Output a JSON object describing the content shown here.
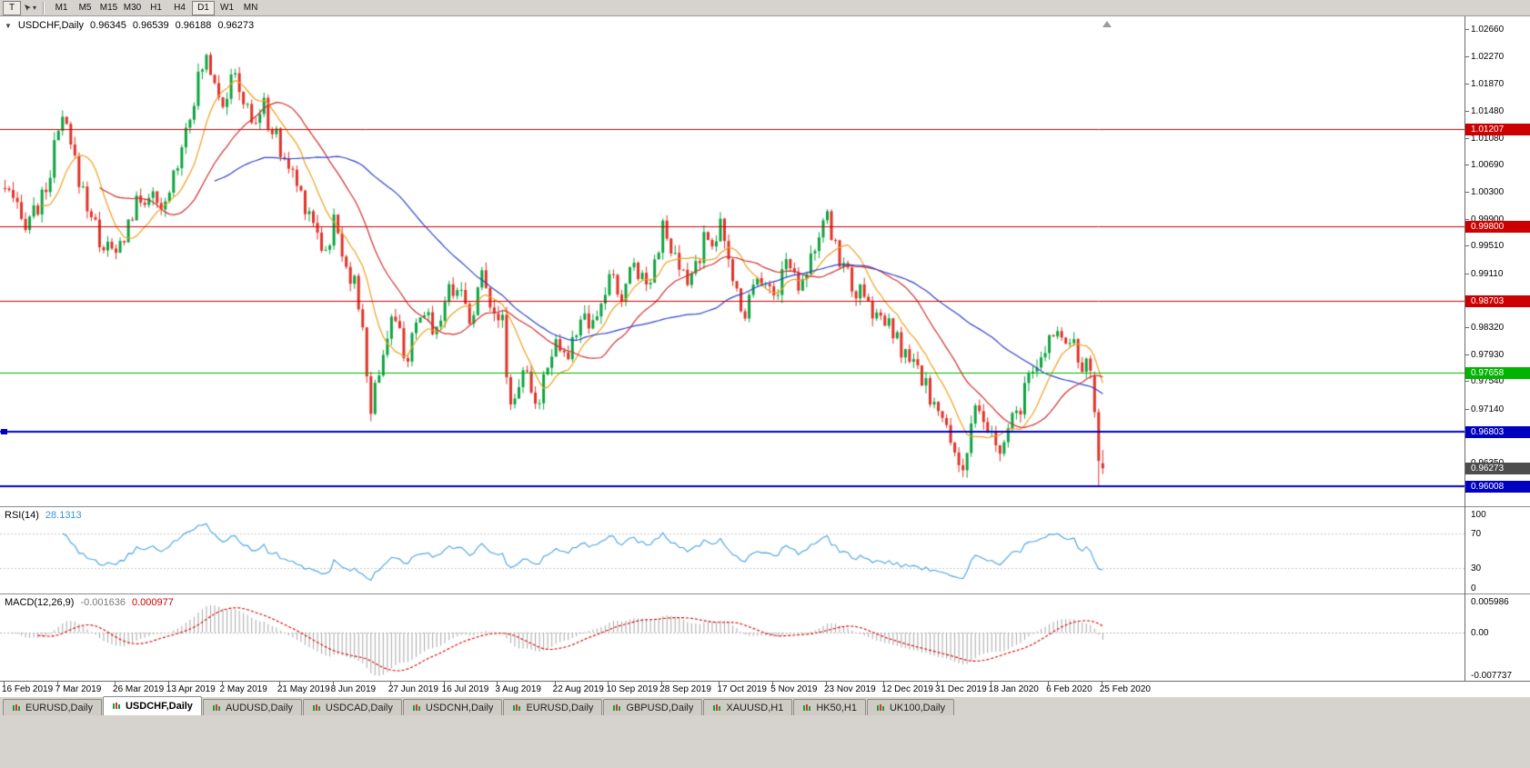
{
  "window": {
    "bg_color": "#d6d3ce"
  },
  "toolbar": {
    "text_tool_label": "T",
    "timeframes": [
      "M1",
      "M5",
      "M15",
      "M30",
      "H1",
      "H4",
      "D1",
      "W1",
      "MN"
    ],
    "active_timeframe": "D1"
  },
  "chart_header": {
    "collapse_icon": "▼",
    "symbol": "USDCHF,Daily",
    "open": "0.96345",
    "high": "0.96539",
    "low": "0.96188",
    "close": "0.96273"
  },
  "indicators": {
    "rsi": {
      "label": "RSI(14)",
      "value": "28.1313",
      "levels": [
        "100",
        "70",
        "30",
        "0"
      ],
      "line_color": "#4aa3e0"
    },
    "macd": {
      "label": "MACD(12,26,9)",
      "main_value": "-0.001636",
      "signal_value": "0.000977",
      "scale_max": "0.005986",
      "scale_zero": "0.00",
      "scale_min": "-0.007737",
      "histogram_color": "#a8a8a8",
      "signal_color": "#d40000"
    }
  },
  "chart_data": {
    "type": "candlestick",
    "symbol": "USDCHF",
    "timeframe": "Daily",
    "candle_count": 268,
    "up_color": "#0da440",
    "down_color": "#e03328",
    "price_path_anchors": [
      [
        0,
        1.0035
      ],
      [
        4,
        0.9985
      ],
      [
        9,
        1.0015
      ],
      [
        14,
        1.0135
      ],
      [
        18,
        1.005
      ],
      [
        23,
        0.996
      ],
      [
        27,
        0.9935
      ],
      [
        31,
        1.0
      ],
      [
        35,
        1.003
      ],
      [
        38,
        0.999
      ],
      [
        40,
        1.003
      ],
      [
        45,
        1.015
      ],
      [
        49,
        1.0228
      ],
      [
        53,
        1.0165
      ],
      [
        56,
        1.0195
      ],
      [
        60,
        1.013
      ],
      [
        63,
        1.015
      ],
      [
        67,
        1.009
      ],
      [
        71,
        1.004
      ],
      [
        75,
        0.999
      ],
      [
        78,
        0.994
      ],
      [
        80,
        0.9985
      ],
      [
        83,
        0.993
      ],
      [
        86,
        0.987
      ],
      [
        89,
        0.9715
      ],
      [
        92,
        0.98
      ],
      [
        94,
        0.9845
      ],
      [
        98,
        0.979
      ],
      [
        102,
        0.9855
      ],
      [
        105,
        0.983
      ],
      [
        107,
        0.9875
      ],
      [
        110,
        0.99
      ],
      [
        113,
        0.9845
      ],
      [
        116,
        0.9905
      ],
      [
        119,
        0.9865
      ],
      [
        121,
        0.9835
      ],
      [
        123,
        0.9718
      ],
      [
        126,
        0.9775
      ],
      [
        129,
        0.9708
      ],
      [
        132,
        0.979
      ],
      [
        134,
        0.9815
      ],
      [
        137,
        0.9785
      ],
      [
        140,
        0.985
      ],
      [
        143,
        0.9825
      ],
      [
        147,
        0.9905
      ],
      [
        150,
        0.9875
      ],
      [
        153,
        0.993
      ],
      [
        156,
        0.9895
      ],
      [
        160,
        0.9975
      ],
      [
        163,
        0.9925
      ],
      [
        166,
        0.9895
      ],
      [
        170,
        0.9955
      ],
      [
        174,
        0.9975
      ],
      [
        177,
        0.99
      ],
      [
        180,
        0.9855
      ],
      [
        183,
        0.992
      ],
      [
        187,
        0.9875
      ],
      [
        190,
        0.993
      ],
      [
        193,
        0.99
      ],
      [
        197,
        0.995
      ],
      [
        200,
        0.9985
      ],
      [
        203,
        0.9935
      ],
      [
        206,
        0.9895
      ],
      [
        210,
        0.986
      ],
      [
        214,
        0.984
      ],
      [
        218,
        0.98
      ],
      [
        222,
        0.9765
      ],
      [
        225,
        0.9735
      ],
      [
        227,
        0.9705
      ],
      [
        230,
        0.9668
      ],
      [
        233,
        0.9628
      ],
      [
        236,
        0.9705
      ],
      [
        239,
        0.9682
      ],
      [
        242,
        0.9648
      ],
      [
        245,
        0.9692
      ],
      [
        248,
        0.9738
      ],
      [
        252,
        0.9782
      ],
      [
        255,
        0.9832
      ],
      [
        258,
        0.9822
      ],
      [
        261,
        0.9785
      ],
      [
        263,
        0.9772
      ],
      [
        265,
        0.9756
      ],
      [
        266,
        0.9712
      ],
      [
        267,
        0.9627
      ]
    ],
    "forced_last_candles": {
      "265": [
        0.9762,
        0.9768,
        0.9701,
        0.9709
      ],
      "266": [
        0.9709,
        0.9714,
        0.9601,
        0.9638
      ],
      "267": [
        0.96345,
        0.96539,
        0.96188,
        0.96273
      ]
    },
    "moving_averages": [
      {
        "period": 10,
        "color": "#f0a020"
      },
      {
        "period": 24,
        "color": "#d03030"
      },
      {
        "period": 52,
        "color": "#3344cc"
      }
    ],
    "y_axis": {
      "top_price": 1.0285,
      "bottom_price": 0.9572,
      "ticks": [
        "1.02660",
        "1.02270",
        "1.01870",
        "1.01480",
        "1.01080",
        "1.00690",
        "1.00300",
        "0.99900",
        "0.99510",
        "0.99110",
        "0.98720",
        "0.98320",
        "0.97930",
        "0.97540",
        "0.97140",
        "0.96750",
        "0.96350",
        "0.95960"
      ]
    },
    "levels": [
      {
        "price": 1.01207,
        "label": "1.01207",
        "color": "#cc0000",
        "thickness": 1
      },
      {
        "price": 0.998,
        "label": "0.99800",
        "color": "#cc0000",
        "thickness": 1
      },
      {
        "price": 0.98703,
        "label": "0.98703",
        "color": "#cc0000",
        "thickness": 1
      },
      {
        "price": 0.97658,
        "label": "0.97658",
        "color": "#00b400",
        "thickness": 1
      },
      {
        "price": 0.96803,
        "label": "0.96803",
        "color": "#0000c0",
        "thickness": 2
      },
      {
        "price": 0.96008,
        "label": "0.96008",
        "color": "#0000c0",
        "thickness": 2
      }
    ],
    "current_price": {
      "value": 0.96273,
      "label": "0.96273",
      "badge_color": "#4d4d4d"
    },
    "x_axis_labels": [
      "16 Feb 2019",
      "7 Mar 2019",
      "26 Mar 2019",
      "13 Apr 2019",
      "2 May 2019",
      "21 May 2019",
      "8 Jun 2019",
      "27 Jun 2019",
      "16 Jul 2019",
      "3 Aug 2019",
      "22 Aug 2019",
      "10 Sep 2019",
      "28 Sep 2019",
      "17 Oct 2019",
      "5 Nov 2019",
      "23 Nov 2019",
      "12 Dec 2019",
      "31 Dec 2019",
      "18 Jan 2020",
      "6 Feb 2020",
      "25 Feb 2020"
    ],
    "x_label_indices": [
      0,
      13,
      27,
      40,
      53,
      67,
      80,
      94,
      107,
      120,
      134,
      147,
      160,
      174,
      187,
      200,
      214,
      227,
      240,
      254,
      267
    ]
  },
  "tabs": [
    {
      "label": "EURUSD,Daily",
      "active": false
    },
    {
      "label": "USDCHF,Daily",
      "active": true
    },
    {
      "label": "AUDUSD,Daily",
      "active": false
    },
    {
      "label": "USDCAD,Daily",
      "active": false
    },
    {
      "label": "USDCNH,Daily",
      "active": false
    },
    {
      "label": "EURUSD,Daily",
      "active": false
    },
    {
      "label": "GBPUSD,Daily",
      "active": false
    },
    {
      "label": "XAUUSD,H1",
      "active": false
    },
    {
      "label": "HK50,H1",
      "active": false
    },
    {
      "label": "UK100,Daily",
      "active": false
    }
  ]
}
